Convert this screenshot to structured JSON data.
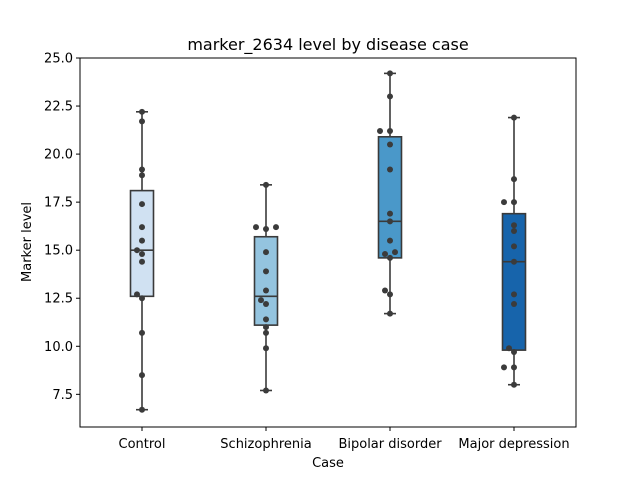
{
  "chart_data": {
    "type": "box",
    "title": "marker_2634 level by disease case",
    "xlabel": "Case",
    "ylabel": "Marker level",
    "ylim": [
      5.8,
      25.0
    ],
    "yticks": [
      "7.5",
      "10.0",
      "12.5",
      "15.0",
      "17.5",
      "20.0",
      "22.5",
      "25.0"
    ],
    "grid": false,
    "categories": [
      "Control",
      "Schizophrenia",
      "Bipolar disorder",
      "Major depression"
    ],
    "colors": [
      "#d0e1f2",
      "#94c4df",
      "#4a98c9",
      "#1764ab"
    ],
    "boxes": [
      {
        "whisker_low": 6.7,
        "q1": 12.6,
        "median": 15.0,
        "q3": 18.1,
        "whisker_high": 22.2
      },
      {
        "whisker_low": 7.7,
        "q1": 11.1,
        "median": 12.6,
        "q3": 15.7,
        "whisker_high": 18.4
      },
      {
        "whisker_low": 11.7,
        "q1": 14.6,
        "median": 16.5,
        "q3": 20.9,
        "whisker_high": 24.2
      },
      {
        "whisker_low": 8.0,
        "q1": 9.8,
        "median": 14.4,
        "q3": 16.9,
        "whisker_high": 21.9
      }
    ],
    "points": [
      [
        22.2,
        21.7,
        19.2,
        18.9,
        17.4,
        16.2,
        15.5,
        15.0,
        14.8,
        14.4,
        12.7,
        12.5,
        10.7,
        8.5,
        6.7
      ],
      [
        18.4,
        16.2,
        16.1,
        16.2,
        14.9,
        13.9,
        12.9,
        12.4,
        12.2,
        11.4,
        11.0,
        10.7,
        9.9,
        7.7
      ],
      [
        24.2,
        23.0,
        21.2,
        21.2,
        20.5,
        19.2,
        16.9,
        16.5,
        15.5,
        14.9,
        14.8,
        14.6,
        12.9,
        12.7,
        11.7
      ],
      [
        21.9,
        18.7,
        17.5,
        17.5,
        16.3,
        16.0,
        15.2,
        14.4,
        12.7,
        12.2,
        9.9,
        9.7,
        8.9,
        8.9,
        8.0
      ]
    ]
  }
}
